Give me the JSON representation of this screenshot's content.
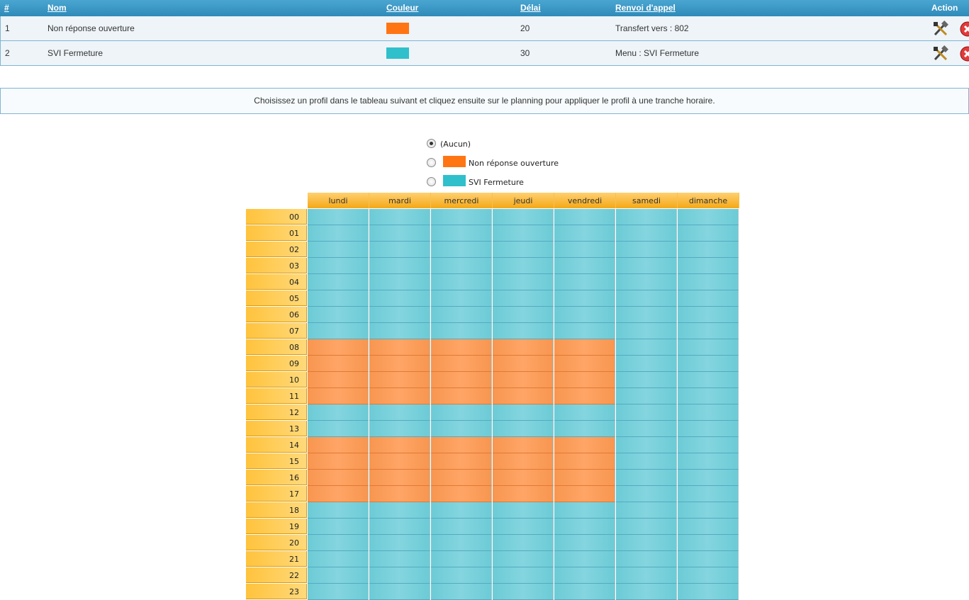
{
  "profile_table": {
    "headers": {
      "num": "#",
      "name": "Nom",
      "color": "Couleur",
      "delay": "Délai",
      "forward": "Renvoi d'appel",
      "action": "Action"
    },
    "rows": [
      {
        "num": "1",
        "name": "Non réponse ouverture",
        "color": "#ff7514",
        "delay": "20",
        "forward": "Transfert vers : 802"
      },
      {
        "num": "2",
        "name": "SVI Fermeture",
        "color": "#2fc0cc",
        "delay": "30",
        "forward": "Menu : SVI Fermeture"
      }
    ],
    "action_icons": [
      "edit-tools-icon",
      "delete-icon"
    ]
  },
  "info_banner": "Choisissez un profil dans le tableau suivant et cliquez ensuite sur le planning pour appliquer le profil à une tranche horaire.",
  "profile_picker": {
    "options": [
      {
        "label": "(Aucun)",
        "color": "",
        "checked": true
      },
      {
        "label": "Non réponse ouverture",
        "color": "#ff7514",
        "checked": false
      },
      {
        "label": "SVI Fermeture",
        "color": "#2fc0cc",
        "checked": false
      }
    ]
  },
  "schedule": {
    "days": [
      "lundi",
      "mardi",
      "mercredi",
      "jeudi",
      "vendredi",
      "samedi",
      "dimanche"
    ],
    "hours": [
      "00",
      "01",
      "02",
      "03",
      "04",
      "05",
      "06",
      "07",
      "08",
      "09",
      "10",
      "11",
      "12",
      "13",
      "14",
      "15",
      "16",
      "17",
      "18",
      "19",
      "20",
      "21",
      "22",
      "23"
    ],
    "orange_profile": "Non réponse ouverture",
    "teal_profile": "SVI Fermeture",
    "weekday_open_hours": [
      "08",
      "09",
      "10",
      "11",
      "14",
      "15",
      "16",
      "17"
    ],
    "open_days": [
      "lundi",
      "mardi",
      "mercredi",
      "jeudi",
      "vendredi"
    ]
  }
}
